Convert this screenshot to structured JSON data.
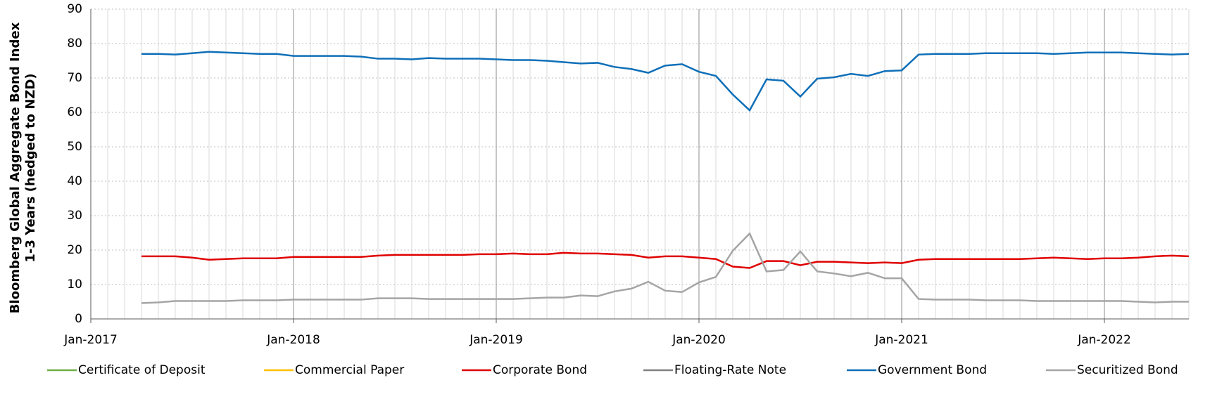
{
  "chart_data": {
    "type": "line",
    "y_label": "Bloomberg Global Aggregate Bond Index 1-3 Years (hedged to NZD)",
    "x": [
      "2017-04",
      "2017-05",
      "2017-06",
      "2017-07",
      "2017-08",
      "2017-09",
      "2017-10",
      "2017-11",
      "2017-12",
      "2018-01",
      "2018-02",
      "2018-03",
      "2018-04",
      "2018-05",
      "2018-06",
      "2018-07",
      "2018-08",
      "2018-09",
      "2018-10",
      "2018-11",
      "2018-12",
      "2019-01",
      "2019-02",
      "2019-03",
      "2019-04",
      "2019-05",
      "2019-06",
      "2019-07",
      "2019-08",
      "2019-09",
      "2019-10",
      "2019-11",
      "2019-12",
      "2020-01",
      "2020-02",
      "2020-03",
      "2020-04",
      "2020-05",
      "2020-06",
      "2020-07",
      "2020-08",
      "2020-09",
      "2020-10",
      "2020-11",
      "2020-12",
      "2021-01",
      "2021-02",
      "2021-03",
      "2021-04",
      "2021-05",
      "2021-06",
      "2021-07",
      "2021-08",
      "2021-09",
      "2021-10",
      "2021-11",
      "2021-12",
      "2022-01",
      "2022-02",
      "2022-03",
      "2022-04",
      "2022-05",
      "2022-06"
    ],
    "xlim": [
      "2017-01",
      "2022-06"
    ],
    "xticks": [
      {
        "value": "2017-01",
        "label": "Jan-2017"
      },
      {
        "value": "2018-01",
        "label": "Jan-2018"
      },
      {
        "value": "2019-01",
        "label": "Jan-2019"
      },
      {
        "value": "2020-01",
        "label": "Jan-2020"
      },
      {
        "value": "2021-01",
        "label": "Jan-2021"
      },
      {
        "value": "2022-01",
        "label": "Jan-2022"
      }
    ],
    "ylim": [
      0,
      90
    ],
    "yticks": [
      0,
      10,
      20,
      30,
      40,
      50,
      60,
      70,
      80,
      90
    ],
    "grid": true,
    "legend": "bottom",
    "series": [
      {
        "name": "Certificate of Deposit",
        "color": "#70ad47",
        "values": [
          null,
          null,
          null,
          null,
          null,
          null,
          null,
          null,
          null,
          null,
          null,
          null,
          null,
          null,
          null,
          null,
          null,
          null,
          null,
          null,
          null,
          null,
          null,
          null,
          null,
          null,
          null,
          null,
          null,
          null,
          null,
          null,
          null,
          null,
          null,
          null,
          null,
          null,
          null,
          null,
          null,
          null,
          null,
          null,
          null,
          null,
          null,
          null,
          null,
          null,
          null,
          null,
          null,
          null,
          null,
          null,
          null,
          null,
          null,
          null,
          null,
          null,
          null
        ]
      },
      {
        "name": "Commercial Paper",
        "color": "#ffc000",
        "values": [
          null,
          null,
          null,
          null,
          null,
          null,
          null,
          null,
          null,
          null,
          null,
          null,
          null,
          null,
          null,
          null,
          null,
          null,
          null,
          null,
          null,
          null,
          null,
          null,
          null,
          null,
          null,
          null,
          null,
          null,
          null,
          null,
          null,
          null,
          null,
          null,
          null,
          null,
          null,
          null,
          null,
          null,
          null,
          null,
          null,
          null,
          null,
          null,
          null,
          null,
          null,
          null,
          null,
          null,
          null,
          null,
          null,
          null,
          null,
          null,
          null,
          null,
          null
        ]
      },
      {
        "name": "Corporate Bond",
        "color": "#e00000",
        "values": [
          18.2,
          18.2,
          18.2,
          17.8,
          17.2,
          17.4,
          17.6,
          17.6,
          17.6,
          18,
          18,
          18,
          18,
          18,
          18.4,
          18.6,
          18.6,
          18.6,
          18.6,
          18.6,
          18.8,
          18.8,
          19,
          18.8,
          18.8,
          19.2,
          19,
          19,
          18.8,
          18.6,
          17.8,
          18.2,
          18.2,
          17.8,
          17.4,
          15.2,
          14.8,
          16.8,
          16.8,
          15.6,
          16.6,
          16.6,
          16.4,
          16.2,
          16.4,
          16.2,
          17.2,
          17.4,
          17.4,
          17.4,
          17.4,
          17.4,
          17.4,
          17.6,
          17.8,
          17.6,
          17.4,
          17.6,
          17.6,
          17.8,
          18.2,
          18.4,
          18.2
        ]
      },
      {
        "name": "Floating-Rate Note",
        "color": "#808080",
        "values": [
          null,
          null,
          null,
          null,
          null,
          null,
          null,
          null,
          null,
          null,
          null,
          null,
          null,
          null,
          null,
          null,
          null,
          null,
          null,
          null,
          null,
          null,
          null,
          null,
          null,
          null,
          null,
          null,
          null,
          null,
          null,
          null,
          null,
          null,
          null,
          null,
          null,
          null,
          null,
          null,
          null,
          null,
          null,
          null,
          null,
          null,
          null,
          null,
          null,
          null,
          null,
          null,
          null,
          null,
          null,
          null,
          null,
          null,
          null,
          null,
          null,
          null,
          null
        ]
      },
      {
        "name": "Government Bond",
        "color": "#0f6fb8",
        "values": [
          77,
          77,
          76.8,
          77.2,
          77.6,
          77.4,
          77.2,
          77,
          77,
          76.4,
          76.4,
          76.4,
          76.4,
          76.2,
          75.6,
          75.6,
          75.4,
          75.8,
          75.6,
          75.6,
          75.6,
          75.4,
          75.2,
          75.2,
          75,
          74.6,
          74.2,
          74.4,
          73.2,
          72.6,
          71.5,
          73.6,
          74,
          71.8,
          70.6,
          65.2,
          60.6,
          69.6,
          69.2,
          64.6,
          69.8,
          70.2,
          71.2,
          70.6,
          72,
          72.2,
          76.8,
          77,
          77,
          77,
          77.2,
          77.2,
          77.2,
          77.2,
          77,
          77.2,
          77.4,
          77.4,
          77.4,
          77.2,
          77,
          76.8,
          77
        ]
      },
      {
        "name": "Securitized Bond",
        "color": "#a5a5a5",
        "values": [
          4.6,
          4.8,
          5.2,
          5.2,
          5.2,
          5.2,
          5.4,
          5.4,
          5.4,
          5.6,
          5.6,
          5.6,
          5.6,
          5.6,
          6,
          6,
          6,
          5.8,
          5.8,
          5.8,
          5.8,
          5.8,
          5.8,
          6,
          6.2,
          6.2,
          6.8,
          6.6,
          8,
          8.8,
          10.8,
          8.2,
          7.8,
          10.6,
          12.2,
          19.8,
          24.8,
          13.8,
          14.2,
          19.6,
          13.8,
          13.2,
          12.4,
          13.4,
          11.8,
          11.8,
          5.8,
          5.6,
          5.6,
          5.6,
          5.4,
          5.4,
          5.4,
          5.2,
          5.2,
          5.2,
          5.2,
          5.2,
          5.2,
          5,
          4.8,
          5,
          5
        ]
      }
    ]
  }
}
